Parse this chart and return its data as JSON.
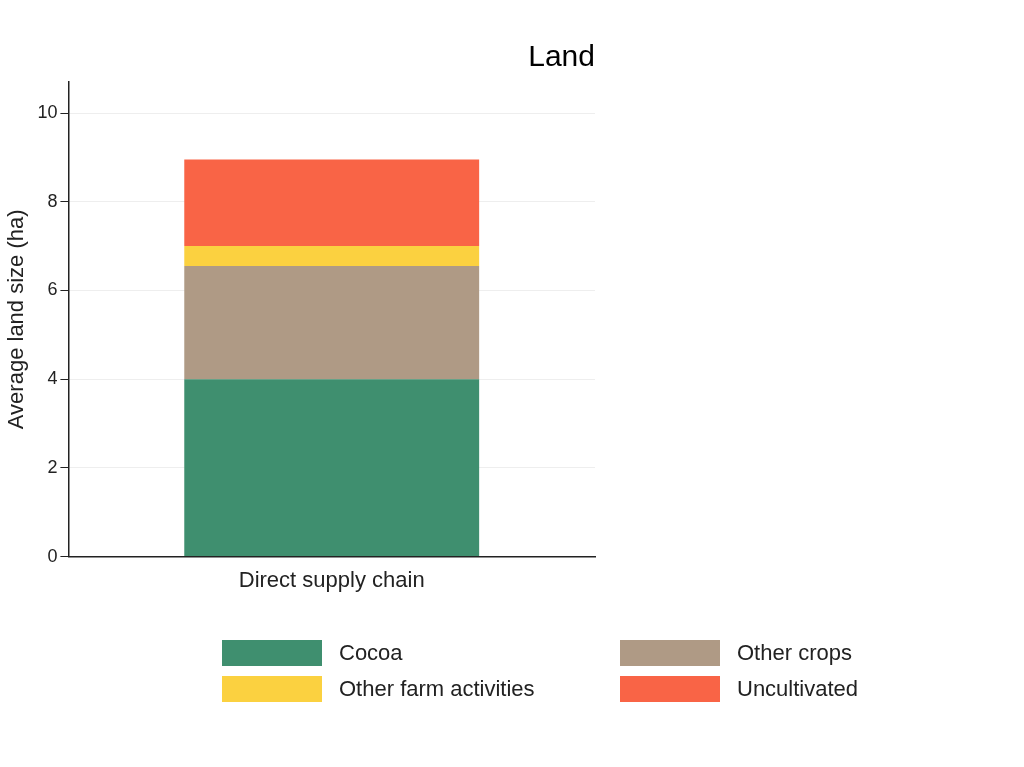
{
  "chart_data": {
    "type": "bar",
    "title": "Land",
    "ylabel": "Average land size (ha)",
    "categories": [
      "Direct supply chain"
    ],
    "stacked": true,
    "series": [
      {
        "name": "Cocoa",
        "color": "#3f8f6f",
        "values": [
          4.0
        ]
      },
      {
        "name": "Other crops",
        "color": "#af9a85",
        "values": [
          2.55
        ]
      },
      {
        "name": "Other farm activities",
        "color": "#fbd140",
        "values": [
          0.45
        ]
      },
      {
        "name": "Uncultivated",
        "color": "#f96446",
        "values": [
          1.95
        ]
      }
    ],
    "ylim": [
      0,
      10.7
    ],
    "yticks": [
      0,
      2,
      4,
      6,
      8,
      10
    ],
    "grid": "y",
    "legend": "bottom"
  }
}
